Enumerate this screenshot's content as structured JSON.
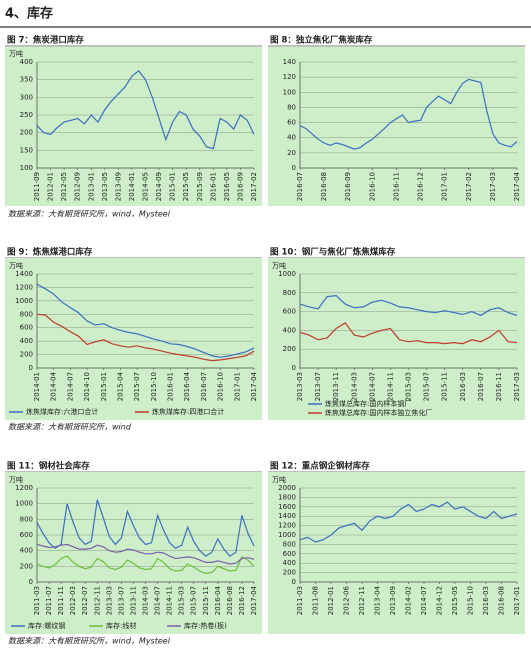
{
  "section_title": "4、库存",
  "sources": [
    "数据来源：大有期货研究所，wind，Mysteel",
    "数据来源：大有期货研究所，wind",
    "数据来源：大有期货研究所，wind，Mysteel"
  ],
  "chart_data": [
    {
      "type": "line",
      "title": "图 7：焦炭港口库存",
      "unit": "万吨",
      "color": "#3a6fc2",
      "grid": true,
      "categories": [
        "2011-09",
        null,
        "2012-01",
        null,
        "2012-05",
        null,
        "2012-09",
        null,
        "2013-01",
        null,
        "2013-05",
        null,
        "2013-09",
        null,
        "2014-01",
        null,
        "2014-05",
        null,
        "2014-09",
        null,
        "2015-01",
        null,
        "2015-05",
        null,
        "2015-09",
        null,
        "2016-01",
        null,
        "2016-05",
        null,
        "2016-09",
        null,
        "2017-02"
      ],
      "values": [
        220,
        200,
        195,
        215,
        230,
        235,
        240,
        225,
        250,
        230,
        265,
        290,
        310,
        330,
        360,
        375,
        350,
        300,
        240,
        180,
        230,
        260,
        250,
        210,
        190,
        160,
        155,
        240,
        230,
        210,
        250,
        235,
        195
      ],
      "ylim": [
        100,
        400
      ],
      "yticks": [
        100,
        150,
        200,
        250,
        300,
        350,
        400
      ]
    },
    {
      "type": "line",
      "title": "图 8：独立焦化厂焦炭库存",
      "color": "#3a6fc2",
      "grid": true,
      "categories": [
        "2016-07",
        null,
        null,
        null,
        "2016-08",
        null,
        null,
        null,
        "2016-09",
        null,
        null,
        null,
        "2016-10",
        null,
        null,
        null,
        "2016-11",
        null,
        null,
        null,
        "2016-12",
        null,
        null,
        null,
        "2017-01",
        null,
        null,
        null,
        "2017-02",
        null,
        null,
        null,
        "2017-03",
        null,
        null,
        null,
        "2017-04"
      ],
      "values": [
        56,
        52,
        45,
        38,
        33,
        30,
        33,
        31,
        28,
        25,
        27,
        33,
        38,
        45,
        52,
        60,
        65,
        70,
        60,
        62,
        63,
        80,
        88,
        95,
        90,
        85,
        100,
        112,
        117,
        115,
        113,
        75,
        45,
        33,
        30,
        28,
        35
      ],
      "ylim": [
        0,
        140
      ],
      "yticks": [
        0,
        20,
        40,
        60,
        80,
        100,
        120,
        140
      ]
    },
    {
      "type": "line",
      "title": "图 9：炼焦煤港口库存",
      "unit": "万吨",
      "grid": true,
      "legend": "bottom",
      "categories": [
        "2014-01",
        null,
        "2014-04",
        null,
        "2014-07",
        null,
        "2014-10",
        null,
        "2015-01",
        null,
        "2015-04",
        null,
        "2015-07",
        null,
        "2015-10",
        null,
        "2016-01",
        null,
        "2016-04",
        null,
        "2016-07",
        null,
        "2016-10",
        null,
        "2017-01",
        null,
        "2017-04"
      ],
      "series": [
        {
          "name": "炼焦煤库存:六港口合计",
          "color": "#3a6fc2",
          "values": [
            1250,
            1180,
            1100,
            980,
            900,
            820,
            700,
            640,
            660,
            600,
            560,
            530,
            510,
            470,
            430,
            400,
            360,
            350,
            320,
            280,
            230,
            180,
            160,
            180,
            210,
            240,
            300
          ]
        },
        {
          "name": "炼焦煤库存:四港口合计",
          "color": "#c0392b",
          "values": [
            800,
            790,
            680,
            620,
            540,
            470,
            350,
            390,
            420,
            360,
            330,
            310,
            330,
            300,
            280,
            250,
            220,
            200,
            180,
            160,
            130,
            110,
            120,
            140,
            160,
            180,
            250
          ]
        }
      ],
      "ylim": [
        0,
        1400
      ],
      "yticks": [
        0,
        200,
        400,
        600,
        800,
        1000,
        1200,
        1400
      ]
    },
    {
      "type": "line",
      "title": "图 10：钢厂与焦化厂炼焦煤库存",
      "unit": "万吨",
      "grid": true,
      "legend": "bottom",
      "categories": [
        "2013-03",
        null,
        "2013-07",
        null,
        "2013-11",
        null,
        "2014-03",
        null,
        "2014-07",
        null,
        "2014-11",
        null,
        "2015-03",
        null,
        "2015-07",
        null,
        "2015-11",
        null,
        "2016-03",
        null,
        "2016-07",
        null,
        "2016-11",
        null,
        "2017-03"
      ],
      "series": [
        {
          "name": "炼焦煤总库存:国内样本钢厂",
          "color": "#3a6fc2",
          "values": [
            680,
            650,
            630,
            760,
            770,
            680,
            640,
            650,
            700,
            720,
            690,
            650,
            640,
            620,
            600,
            590,
            610,
            590,
            570,
            600,
            560,
            620,
            640,
            590,
            560
          ]
        },
        {
          "name": "炼焦煤总库存:国内样本独立焦化厂",
          "color": "#c0392b",
          "values": [
            380,
            350,
            300,
            320,
            420,
            480,
            350,
            330,
            370,
            400,
            420,
            300,
            280,
            290,
            270,
            270,
            260,
            270,
            260,
            300,
            280,
            330,
            400,
            280,
            270
          ]
        }
      ],
      "ylim": [
        0,
        1000
      ],
      "yticks": [
        0,
        200,
        400,
        600,
        800,
        1000
      ]
    },
    {
      "type": "line",
      "title": "图 11：钢材社会库存",
      "unit": "万吨",
      "grid": true,
      "legend": "bottom",
      "categories": [
        "2011-03",
        null,
        "2011-07",
        null,
        "2011-11",
        null,
        "2012-03",
        null,
        "2012-07",
        null,
        "2012-11",
        null,
        "2013-03",
        null,
        "2013-07",
        null,
        "2013-11",
        null,
        "2014-03",
        null,
        "2014-07",
        null,
        "2014-11",
        null,
        "2015-03",
        null,
        "2015-07",
        null,
        "2015-11",
        null,
        "2016-04",
        null,
        "2016-08",
        null,
        "2016-12",
        null,
        "2017-04"
      ],
      "series": [
        {
          "name": "库存:螺纹钢",
          "color": "#3a6fc2",
          "values": [
            760,
            620,
            500,
            430,
            480,
            1000,
            760,
            560,
            480,
            520,
            1050,
            820,
            580,
            480,
            560,
            900,
            720,
            560,
            480,
            500,
            850,
            660,
            500,
            430,
            470,
            700,
            520,
            400,
            330,
            380,
            550,
            420,
            330,
            380,
            850,
            620,
            460
          ]
        },
        {
          "name": "库存:线材",
          "color": "#6cbf3a",
          "values": [
            230,
            200,
            180,
            220,
            300,
            330,
            250,
            200,
            170,
            190,
            300,
            260,
            180,
            160,
            190,
            280,
            240,
            180,
            160,
            170,
            300,
            250,
            170,
            140,
            150,
            230,
            190,
            140,
            110,
            120,
            200,
            170,
            140,
            150,
            320,
            280,
            200
          ]
        },
        {
          "name": "库存:热卷(板)",
          "color": "#7b5ea7",
          "values": [
            480,
            460,
            440,
            450,
            470,
            480,
            450,
            420,
            420,
            430,
            470,
            450,
            400,
            380,
            390,
            420,
            410,
            380,
            360,
            360,
            380,
            370,
            330,
            300,
            310,
            320,
            310,
            280,
            250,
            250,
            270,
            250,
            230,
            240,
            300,
            310,
            290
          ]
        }
      ],
      "ylim": [
        0,
        1200
      ],
      "yticks": [
        0,
        200,
        400,
        600,
        800,
        1000,
        1200
      ]
    },
    {
      "type": "line",
      "title": "图 12：重点钢企钢材库存",
      "unit": "万吨",
      "color": "#3a6fc2",
      "grid": true,
      "categories": [
        "2011-03",
        null,
        "2011-08",
        null,
        "2012-01",
        null,
        "2012-06",
        null,
        "2012-11",
        null,
        "2013-04",
        null,
        "2013-09",
        null,
        "2014-02",
        null,
        "2014-07",
        null,
        "2014-12",
        null,
        "2015-05",
        null,
        "2015-10",
        null,
        "2016-03",
        null,
        "2016-08",
        null,
        "2017-01"
      ],
      "values": [
        900,
        950,
        850,
        900,
        1000,
        1150,
        1200,
        1250,
        1100,
        1300,
        1400,
        1350,
        1400,
        1550,
        1650,
        1500,
        1550,
        1650,
        1600,
        1700,
        1550,
        1600,
        1500,
        1400,
        1350,
        1500,
        1350,
        1400,
        1450
      ],
      "ylim": [
        0,
        2000
      ],
      "yticks": [
        0,
        200,
        400,
        600,
        800,
        1000,
        1200,
        1400,
        1600,
        1800,
        2000
      ]
    }
  ]
}
